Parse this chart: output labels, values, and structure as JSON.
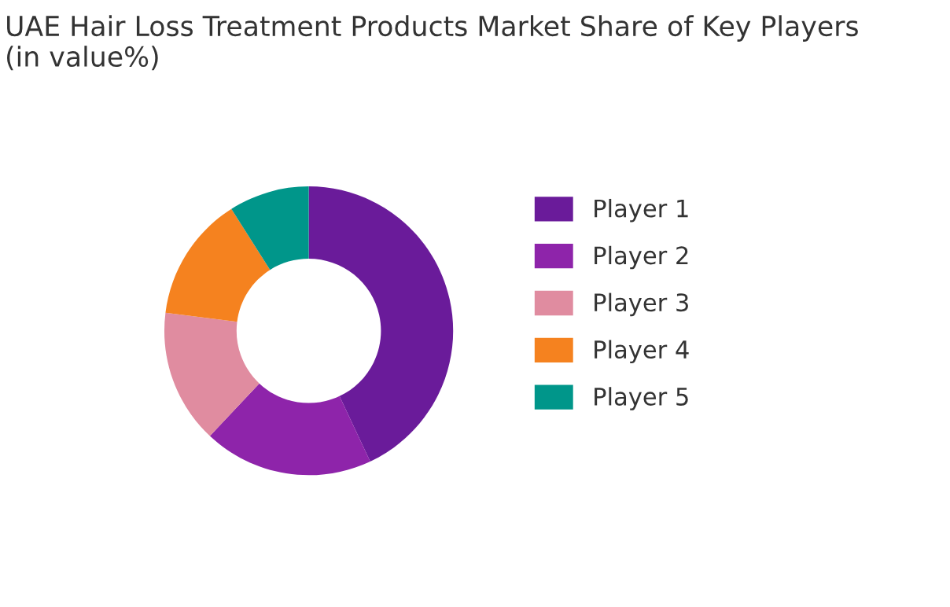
{
  "chart_data": {
    "type": "donut",
    "title": "UAE Hair Loss Treatment Products Market Share of Key Players\n(in value%)",
    "categories": [
      "Player 1",
      "Player 2",
      "Player 3",
      "Player 4",
      "Player 5"
    ],
    "values": [
      43,
      19,
      15,
      14,
      9
    ],
    "colors": [
      "#6a1b9a",
      "#8e24aa",
      "#e08ca0",
      "#f5821f",
      "#00968a"
    ],
    "legend": "right"
  }
}
